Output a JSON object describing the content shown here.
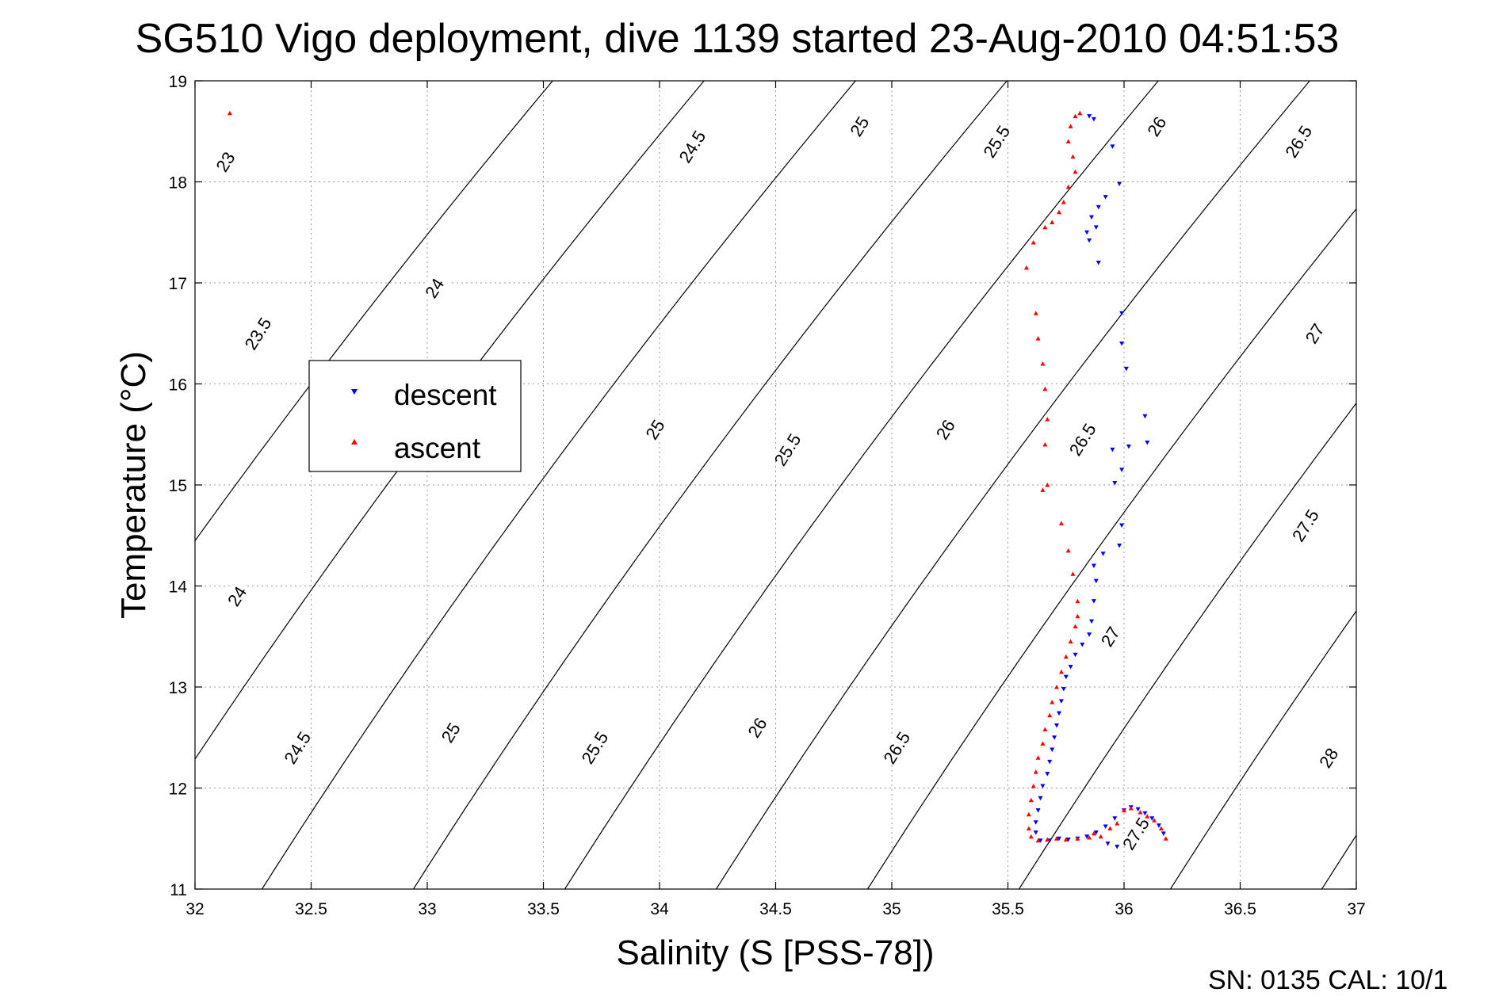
{
  "chart_data": {
    "type": "scatter",
    "title": "SG510 Vigo deployment, dive 1139 started 23-Aug-2010 04:51:53",
    "xlabel": "Salinity (S [PSS-78])",
    "ylabel": "Temperature (°C)",
    "xlim": [
      32,
      37
    ],
    "ylim": [
      11,
      19
    ],
    "xticks": [
      "32",
      "32.5",
      "33",
      "33.5",
      "34",
      "34.5",
      "35",
      "35.5",
      "36",
      "36.5",
      "37"
    ],
    "yticks": [
      "11",
      "12",
      "13",
      "14",
      "15",
      "16",
      "17",
      "18",
      "19"
    ],
    "grid": true,
    "legend_position": "left",
    "footer": "SN: 0135  CAL: 10/1",
    "density_contours": {
      "levels": [
        23,
        23.5,
        24,
        24.5,
        25,
        25.5,
        26,
        26.5,
        27,
        27.5,
        28
      ],
      "labels": [
        {
          "text": "23",
          "s": 32.13,
          "t": 18.2
        },
        {
          "text": "23.5",
          "s": 32.27,
          "t": 16.5
        },
        {
          "text": "24",
          "s": 33.03,
          "t": 16.95
        },
        {
          "text": "24",
          "s": 32.18,
          "t": 13.9
        },
        {
          "text": "24.5",
          "s": 34.14,
          "t": 18.35
        },
        {
          "text": "24.5",
          "s": 32.44,
          "t": 12.4
        },
        {
          "text": "25",
          "s": 34.86,
          "t": 18.55
        },
        {
          "text": "25",
          "s": 33.98,
          "t": 15.55
        },
        {
          "text": "25",
          "s": 33.1,
          "t": 12.55
        },
        {
          "text": "25.5",
          "s": 35.45,
          "t": 18.4
        },
        {
          "text": "25.5",
          "s": 34.55,
          "t": 15.35
        },
        {
          "text": "25.5",
          "s": 33.72,
          "t": 12.4
        },
        {
          "text": "26",
          "s": 36.14,
          "t": 18.55
        },
        {
          "text": "26",
          "s": 35.23,
          "t": 15.55
        },
        {
          "text": "26",
          "s": 34.42,
          "t": 12.6
        },
        {
          "text": "26.5",
          "s": 36.75,
          "t": 18.4
        },
        {
          "text": "26.5",
          "s": 35.82,
          "t": 15.45
        },
        {
          "text": "26.5",
          "s": 35.02,
          "t": 12.4
        },
        {
          "text": "27",
          "s": 36.82,
          "t": 16.5
        },
        {
          "text": "27",
          "s": 35.94,
          "t": 13.5
        },
        {
          "text": "27.5",
          "s": 36.78,
          "t": 14.6
        },
        {
          "text": "27.5",
          "s": 36.05,
          "t": 11.55
        },
        {
          "text": "28",
          "s": 36.88,
          "t": 12.3
        }
      ]
    },
    "series": [
      {
        "name": "descent",
        "color": "#0000ff",
        "marker": "triangle-down",
        "points": [
          [
            35.87,
            18.62
          ],
          [
            35.85,
            18.65
          ],
          [
            35.95,
            18.35
          ],
          [
            35.98,
            17.98
          ],
          [
            35.92,
            17.85
          ],
          [
            35.89,
            17.75
          ],
          [
            35.86,
            17.65
          ],
          [
            35.88,
            17.55
          ],
          [
            35.84,
            17.5
          ],
          [
            35.85,
            17.42
          ],
          [
            35.89,
            17.2
          ],
          [
            35.99,
            16.7
          ],
          [
            35.99,
            16.4
          ],
          [
            36.01,
            16.15
          ],
          [
            36.09,
            15.68
          ],
          [
            36.1,
            15.42
          ],
          [
            36.02,
            15.38
          ],
          [
            35.95,
            15.35
          ],
          [
            35.99,
            15.15
          ],
          [
            35.96,
            15.02
          ],
          [
            35.99,
            14.6
          ],
          [
            35.98,
            14.4
          ],
          [
            35.91,
            14.32
          ],
          [
            35.87,
            14.2
          ],
          [
            35.88,
            14.05
          ],
          [
            35.87,
            13.85
          ],
          [
            35.86,
            13.65
          ],
          [
            35.85,
            13.52
          ],
          [
            35.82,
            13.42
          ],
          [
            35.79,
            13.32
          ],
          [
            35.77,
            13.2
          ],
          [
            35.75,
            13.1
          ],
          [
            35.74,
            12.98
          ],
          [
            35.73,
            12.86
          ],
          [
            35.72,
            12.74
          ],
          [
            35.71,
            12.62
          ],
          [
            35.7,
            12.5
          ],
          [
            35.69,
            12.38
          ],
          [
            35.68,
            12.26
          ],
          [
            35.67,
            12.14
          ],
          [
            35.65,
            12.02
          ],
          [
            35.64,
            11.9
          ],
          [
            35.63,
            11.78
          ],
          [
            35.62,
            11.66
          ],
          [
            35.62,
            11.56
          ],
          [
            35.64,
            11.48
          ],
          [
            35.68,
            11.48
          ],
          [
            35.72,
            11.5
          ],
          [
            35.76,
            11.49
          ],
          [
            35.8,
            11.5
          ],
          [
            35.84,
            11.52
          ],
          [
            35.88,
            11.56
          ],
          [
            35.92,
            11.62
          ],
          [
            35.96,
            11.7
          ],
          [
            36.0,
            11.78
          ],
          [
            36.03,
            11.81
          ],
          [
            36.06,
            11.79
          ],
          [
            36.09,
            11.75
          ],
          [
            36.12,
            11.7
          ],
          [
            36.15,
            11.63
          ],
          [
            36.17,
            11.55
          ],
          [
            35.93,
            11.45
          ],
          [
            35.97,
            11.42
          ]
        ]
      },
      {
        "name": "ascent",
        "color": "#ff0000",
        "marker": "triangle-up",
        "points": [
          [
            32.15,
            18.68
          ],
          [
            35.81,
            18.68
          ],
          [
            35.79,
            18.65
          ],
          [
            35.77,
            18.55
          ],
          [
            35.76,
            18.4
          ],
          [
            35.78,
            18.25
          ],
          [
            35.79,
            18.1
          ],
          [
            35.76,
            17.95
          ],
          [
            35.74,
            17.8
          ],
          [
            35.72,
            17.7
          ],
          [
            35.69,
            17.6
          ],
          [
            35.66,
            17.55
          ],
          [
            35.61,
            17.4
          ],
          [
            35.58,
            17.15
          ],
          [
            35.62,
            16.7
          ],
          [
            35.63,
            16.45
          ],
          [
            35.65,
            16.2
          ],
          [
            35.66,
            15.95
          ],
          [
            35.67,
            15.65
          ],
          [
            35.66,
            15.4
          ],
          [
            35.67,
            15.0
          ],
          [
            35.65,
            14.95
          ],
          [
            35.73,
            14.62
          ],
          [
            35.76,
            14.35
          ],
          [
            35.78,
            14.12
          ],
          [
            35.8,
            13.85
          ],
          [
            35.8,
            13.7
          ],
          [
            35.79,
            13.6
          ],
          [
            35.77,
            13.45
          ],
          [
            35.75,
            13.3
          ],
          [
            35.73,
            13.15
          ],
          [
            35.71,
            13.0
          ],
          [
            35.69,
            12.85
          ],
          [
            35.68,
            12.72
          ],
          [
            35.66,
            12.58
          ],
          [
            35.65,
            12.44
          ],
          [
            35.63,
            12.3
          ],
          [
            35.62,
            12.16
          ],
          [
            35.61,
            12.02
          ],
          [
            35.6,
            11.88
          ],
          [
            35.59,
            11.74
          ],
          [
            35.59,
            11.6
          ],
          [
            35.6,
            11.52
          ],
          [
            35.63,
            11.48
          ],
          [
            35.67,
            11.49
          ],
          [
            35.71,
            11.5
          ],
          [
            35.75,
            11.49
          ],
          [
            35.8,
            11.5
          ],
          [
            35.85,
            11.51
          ],
          [
            35.9,
            11.52
          ],
          [
            35.94,
            11.6
          ],
          [
            35.97,
            11.65
          ],
          [
            36.0,
            11.78
          ],
          [
            36.03,
            11.8
          ],
          [
            36.07,
            11.76
          ],
          [
            36.1,
            11.72
          ],
          [
            36.13,
            11.68
          ],
          [
            36.16,
            11.6
          ],
          [
            36.18,
            11.5
          ],
          [
            35.87,
            11.55
          ]
        ]
      }
    ]
  }
}
